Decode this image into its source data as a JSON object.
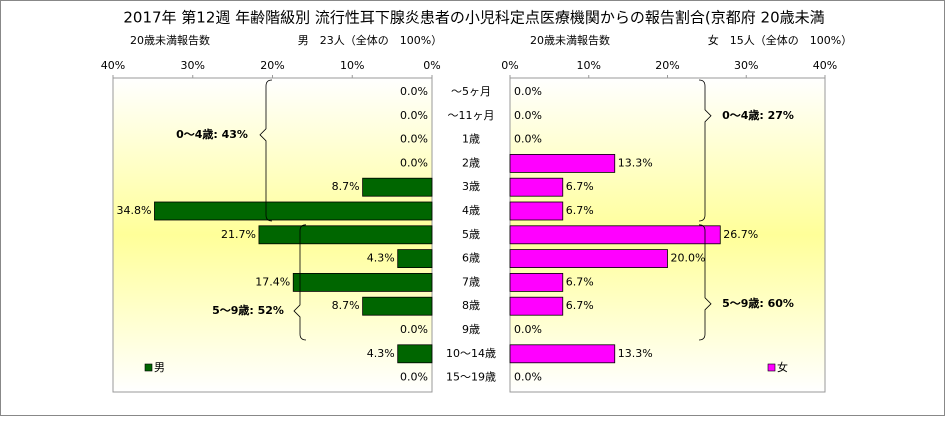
{
  "chart_data": {
    "type": "bar",
    "title": "2017年 第12週 年齢階級別 流行性耳下腺炎患者の小児科定点医療機関からの報告割合(京都府 20歳未満",
    "categories": [
      "～5ヶ月",
      "～11ヶ月",
      "1歳",
      "2歳",
      "3歳",
      "4歳",
      "5歳",
      "6歳",
      "7歳",
      "8歳",
      "9歳",
      "10～14歳",
      "15～19歳"
    ],
    "xlim": [
      0,
      40
    ],
    "xticks": [
      {
        "value": 0,
        "label": "0%"
      },
      {
        "value": 10,
        "label": "10%"
      },
      {
        "value": 20,
        "label": "20%"
      },
      {
        "value": 30,
        "label": "30%"
      },
      {
        "value": 40,
        "label": "40%"
      }
    ],
    "series": [
      {
        "name": "男",
        "color": "#006600",
        "panel_labels": [
          "20歳未満報告数",
          "男　23人（全体の　100%）"
        ],
        "annotations": [
          "0～4歳: 43%",
          "5～9歳: 52%"
        ],
        "values": [
          0,
          0,
          0,
          0,
          8.7,
          34.8,
          21.7,
          4.3,
          17.4,
          8.7,
          0,
          4.3,
          0
        ],
        "value_labels": [
          "0.0%",
          "0.0%",
          "0.0%",
          "0.0%",
          "8.7%",
          "34.8%",
          "21.7%",
          "4.3%",
          "17.4%",
          "8.7%",
          "0.0%",
          "4.3%",
          "0.0%"
        ]
      },
      {
        "name": "女",
        "color": "#ff00ff",
        "panel_labels": [
          "20歳未満報告数",
          "女　15人（全体の　100%）"
        ],
        "annotations": [
          "0～4歳: 27%",
          "5～9歳: 60%"
        ],
        "values": [
          0,
          0,
          0,
          13.3,
          6.7,
          6.7,
          26.7,
          20.0,
          6.7,
          6.7,
          0,
          13.3,
          0
        ],
        "value_labels": [
          "0.0%",
          "0.0%",
          "0.0%",
          "13.3%",
          "6.7%",
          "6.7%",
          "26.7%",
          "20.0%",
          "6.7%",
          "6.7%",
          "0.0%",
          "13.3%",
          "0.0%"
        ]
      }
    ]
  }
}
